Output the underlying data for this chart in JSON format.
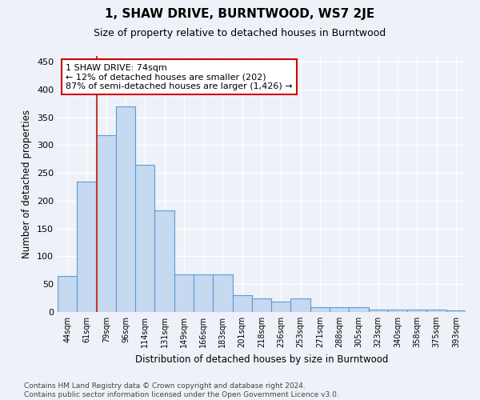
{
  "title": "1, SHAW DRIVE, BURNTWOOD, WS7 2JE",
  "subtitle": "Size of property relative to detached houses in Burntwood",
  "xlabel": "Distribution of detached houses by size in Burntwood",
  "ylabel": "Number of detached properties",
  "categories": [
    "44sqm",
    "61sqm",
    "79sqm",
    "96sqm",
    "114sqm",
    "131sqm",
    "149sqm",
    "166sqm",
    "183sqm",
    "201sqm",
    "218sqm",
    "236sqm",
    "253sqm",
    "271sqm",
    "288sqm",
    "305sqm",
    "323sqm",
    "340sqm",
    "358sqm",
    "375sqm",
    "393sqm"
  ],
  "values": [
    65,
    235,
    318,
    370,
    265,
    183,
    68,
    68,
    68,
    30,
    25,
    18,
    25,
    8,
    8,
    8,
    5,
    5,
    5,
    5,
    3
  ],
  "bar_color": "#c5d9f1",
  "bar_edge_color": "#5b9bd5",
  "vline_color": "#c0392b",
  "vline_x_index": 1.5,
  "annotation_line1": "1 SHAW DRIVE: 74sqm",
  "annotation_line2": "← 12% of detached houses are smaller (202)",
  "annotation_line3": "87% of semi-detached houses are larger (1,426) →",
  "ylim": [
    0,
    460
  ],
  "yticks": [
    0,
    50,
    100,
    150,
    200,
    250,
    300,
    350,
    400,
    450
  ],
  "footer": "Contains HM Land Registry data © Crown copyright and database right 2024.\nContains public sector information licensed under the Open Government Licence v3.0.",
  "background_color": "#eef2f8",
  "plot_background": "#eef2f8",
  "grid_color": "#ffffff",
  "title_fontsize": 11,
  "subtitle_fontsize": 9,
  "annotation_fontsize": 8,
  "footer_fontsize": 6.5
}
